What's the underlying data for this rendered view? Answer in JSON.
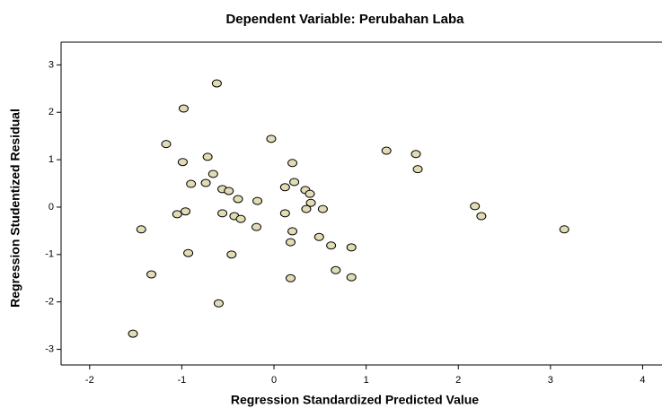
{
  "chart_data": {
    "type": "scatter",
    "title": "Dependent Variable: Perubahan Laba",
    "x_label": "Regression Standardized Predicted Value",
    "y_label": "Regression Studentized Residual",
    "color": "#e2dcb4",
    "xlim": [
      -2.31,
      4.21
    ],
    "ylim": [
      -3.33,
      3.48
    ],
    "xticks": [
      -2,
      -1,
      0,
      1,
      2,
      3,
      4
    ],
    "yticks": [
      -3,
      -2,
      -1,
      0,
      1,
      2,
      3
    ],
    "x": [
      -0.62,
      -0.98,
      -1.17,
      -0.03,
      -0.72,
      -0.99,
      -0.66,
      1.22,
      1.54,
      1.56,
      0.2,
      -0.9,
      -0.74,
      -0.56,
      -0.49,
      -0.39,
      -0.18,
      0.22,
      0.12,
      0.34,
      0.39,
      0.4,
      0.35,
      0.53,
      0.12,
      -1.05,
      -0.96,
      -0.56,
      -0.43,
      -0.36,
      -0.19,
      -1.44,
      0.2,
      0.18,
      0.49,
      0.62,
      0.84,
      2.18,
      2.25,
      3.15,
      -0.93,
      -0.46,
      0.67,
      0.84,
      0.18,
      -1.33,
      -0.6,
      -1.53
    ],
    "values": [
      2.61,
      2.08,
      1.33,
      1.44,
      1.06,
      0.95,
      0.7,
      1.19,
      1.12,
      0.8,
      0.93,
      0.49,
      0.51,
      0.38,
      0.34,
      0.17,
      0.13,
      0.53,
      0.42,
      0.36,
      0.28,
      0.09,
      -0.04,
      -0.04,
      -0.13,
      -0.15,
      -0.09,
      -0.13,
      -0.19,
      -0.25,
      -0.42,
      -0.47,
      -0.51,
      -0.74,
      -0.63,
      -0.81,
      -0.85,
      0.02,
      -0.19,
      -0.47,
      -0.97,
      -1.0,
      -1.33,
      -1.48,
      -1.5,
      -1.42,
      -2.03,
      -2.67
    ]
  }
}
